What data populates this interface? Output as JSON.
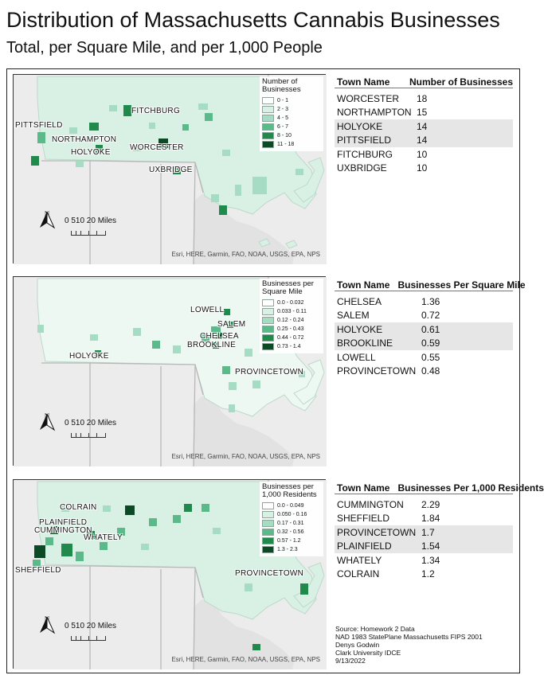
{
  "title": "Distribution of Massachusetts Cannabis Businesses",
  "subtitle": "Total, per Square Mile, and per 1,000 People",
  "panels": [
    {
      "legend_title": "Number of Businesses",
      "legend_classes": [
        "0 - 1",
        "2 - 3",
        "4 - 5",
        "6 - 7",
        "8 - 10",
        "11 - 18"
      ],
      "map_labels": [
        "PITTSFIELD",
        "FITCHBURG",
        "NORTHAMPTON",
        "HOLYOKE",
        "WORCESTER",
        "UXBRIDGE"
      ],
      "table_header": [
        "Town Name",
        "Number of Businesses"
      ],
      "rows": [
        [
          "WORCESTER",
          "18"
        ],
        [
          "NORTHAMPTON",
          "15"
        ],
        [
          "HOLYOKE",
          "14"
        ],
        [
          "PITTSFIELD",
          "14"
        ],
        [
          "FITCHBURG",
          "10"
        ],
        [
          "UXBRIDGE",
          "10"
        ]
      ]
    },
    {
      "legend_title": "Businesses per Square Mile",
      "legend_classes": [
        "0.0 - 0.032",
        "0.033 - 0.11",
        "0.12 - 0.24",
        "0.25 - 0.43",
        "0.44 - 0.72",
        "0.73 - 1.4"
      ],
      "map_labels": [
        "LOWELL",
        "SALEM",
        "CHELSEA",
        "BROOKLINE",
        "HOLYOKE",
        "PROVINCETOWN"
      ],
      "table_header": [
        "Town Name",
        "Businesses Per Square Mile"
      ],
      "rows": [
        [
          "CHELSEA",
          "1.36"
        ],
        [
          "SALEM",
          "0.72"
        ],
        [
          "HOLYOKE",
          "0.61"
        ],
        [
          "BROOKLINE",
          "0.59"
        ],
        [
          "LOWELL",
          "0.55"
        ],
        [
          "PROVINCETOWN",
          "0.48"
        ]
      ]
    },
    {
      "legend_title": "Businesses per 1,000 Residents",
      "legend_classes": [
        "0.0 - 0.049",
        "0.050 - 0.16",
        "0.17 - 0.31",
        "0.32 - 0.56",
        "0.57 - 1.2",
        "1.3 - 2.3"
      ],
      "map_labels": [
        "COLRAIN",
        "PLAINFIELD",
        "CUMMINGTON",
        "WHATELY",
        "SHEFFIELD",
        "PROVINCETOWN"
      ],
      "table_header": [
        "Town Name",
        "Businesses Per 1,000 Residents"
      ],
      "rows": [
        [
          "CUMMINGTON",
          "2.29"
        ],
        [
          "SHEFFIELD",
          "1.84"
        ],
        [
          "PROVINCETOWN",
          "1.7"
        ],
        [
          "PLAINFIELD",
          "1.54"
        ],
        [
          "WHATELY",
          "1.34"
        ],
        [
          "COLRAIN",
          "1.2"
        ]
      ]
    }
  ],
  "map_common": {
    "north_label": "N",
    "scale_label": "0 510   20 Miles",
    "credit": "Esri, HERE, Garmin, FAO, NOAA, USGS, EPA, NPS"
  },
  "legend_colors": [
    "#ffffff",
    "#d8f1e6",
    "#a6dcc3",
    "#5cba8a",
    "#1f8a4c",
    "#0b4a24"
  ],
  "source_lines": [
    "Source: Homework 2 Data",
    "NAD 1983 StatePlane Massachusetts FIPS 2001",
    "Denys Godwin",
    "Clark University IDCE",
    "9/13/2022"
  ]
}
